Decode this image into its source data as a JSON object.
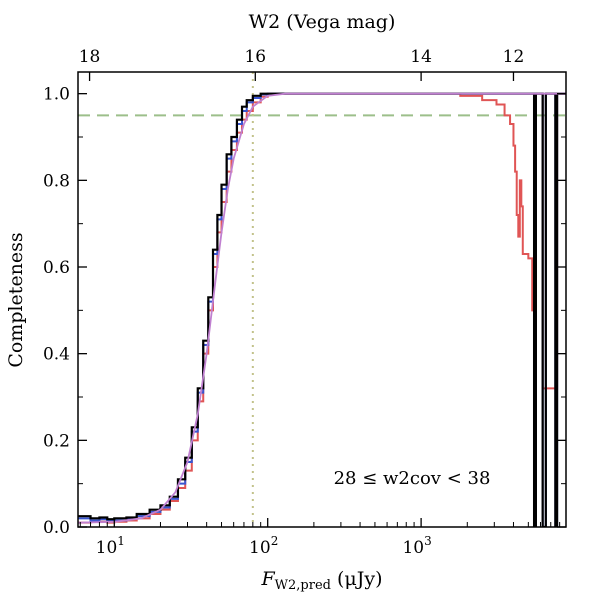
{
  "chart_data": {
    "type": "line",
    "xscale": "log",
    "xlim": [
      5.8,
      8800
    ],
    "ylim": [
      0.0,
      1.05
    ],
    "grid": false,
    "xlabel_main": "F",
    "xlabel_sub": "W2,pred",
    "xlabel_unit": " (μJy)",
    "ylabel": "Completeness",
    "top_xlabel": "W2 (Vega mag)",
    "annotation": "28 ≤ w2cov < 38",
    "bottom_ticks": [
      {
        "value": 10,
        "label": "10",
        "exp": "1"
      },
      {
        "value": 100,
        "label": "10",
        "exp": "2"
      },
      {
        "value": 1000,
        "label": "10",
        "exp": "3"
      }
    ],
    "y_ticks": [
      {
        "value": 0.0,
        "label": "0.0"
      },
      {
        "value": 0.2,
        "label": "0.2"
      },
      {
        "value": 0.4,
        "label": "0.4"
      },
      {
        "value": 0.6,
        "label": "0.6"
      },
      {
        "value": 0.8,
        "label": "0.8"
      },
      {
        "value": 1.0,
        "label": "1.0"
      }
    ],
    "top_ticks": [
      {
        "flux": 6.9,
        "label": "18"
      },
      {
        "flux": 83,
        "label": "16"
      },
      {
        "flux": 1000,
        "label": "14"
      },
      {
        "flux": 4000,
        "label": "12"
      }
    ],
    "reference_lines": [
      {
        "orientation": "horizontal",
        "value": 0.95,
        "color": "#9cbf8a",
        "style": "dashed"
      },
      {
        "orientation": "vertical",
        "value": 80,
        "color": "#c2c28a",
        "style": "dotted"
      }
    ],
    "series": [
      {
        "color": "#e05555",
        "style": "step",
        "points": [
          [
            5.8,
            0.01
          ],
          [
            7,
            0.012
          ],
          [
            9,
            0.01
          ],
          [
            10,
            0.012
          ],
          [
            12,
            0.015
          ],
          [
            14,
            0.02
          ],
          [
            17,
            0.03
          ],
          [
            20,
            0.04
          ],
          [
            23,
            0.06
          ],
          [
            26,
            0.09
          ],
          [
            29,
            0.13
          ],
          [
            32,
            0.2
          ],
          [
            35,
            0.29
          ],
          [
            38,
            0.4
          ],
          [
            41,
            0.5
          ],
          [
            44,
            0.6
          ],
          [
            47,
            0.68
          ],
          [
            50,
            0.75
          ],
          [
            54,
            0.82
          ],
          [
            58,
            0.87
          ],
          [
            63,
            0.91
          ],
          [
            68,
            0.94
          ],
          [
            73,
            0.96
          ],
          [
            80,
            0.98
          ],
          [
            90,
            0.993
          ],
          [
            100,
            1.0
          ],
          [
            1200,
            1.0
          ],
          [
            1800,
            0.995
          ],
          [
            2500,
            0.985
          ],
          [
            3100,
            0.975
          ],
          [
            3500,
            0.95
          ],
          [
            3800,
            0.93
          ],
          [
            4000,
            0.88
          ],
          [
            4100,
            0.82
          ],
          [
            4200,
            0.72
          ],
          [
            4300,
            0.67
          ],
          [
            4400,
            0.8
          ],
          [
            4500,
            0.74
          ],
          [
            4600,
            0.63
          ],
          [
            5000,
            0.62
          ],
          [
            5300,
            0.5
          ],
          [
            5450,
            0.0
          ],
          [
            5600,
            1.0
          ],
          [
            6000,
            1.0
          ],
          [
            6200,
            0.32
          ],
          [
            6500,
            0.32
          ],
          [
            7400,
            0.32
          ],
          [
            7700,
            1.0
          ],
          [
            8800,
            1.0
          ]
        ]
      },
      {
        "color": "#3a55d0",
        "style": "step",
        "points": [
          [
            5.8,
            0.02
          ],
          [
            7,
            0.015
          ],
          [
            8,
            0.018
          ],
          [
            9,
            0.015
          ],
          [
            10,
            0.015
          ],
          [
            12,
            0.02
          ],
          [
            14,
            0.025
          ],
          [
            17,
            0.035
          ],
          [
            20,
            0.045
          ],
          [
            23,
            0.065
          ],
          [
            26,
            0.1
          ],
          [
            29,
            0.15
          ],
          [
            32,
            0.22
          ],
          [
            35,
            0.31
          ],
          [
            38,
            0.42
          ],
          [
            41,
            0.52
          ],
          [
            44,
            0.63
          ],
          [
            47,
            0.71
          ],
          [
            50,
            0.78
          ],
          [
            54,
            0.85
          ],
          [
            58,
            0.89
          ],
          [
            63,
            0.93
          ],
          [
            68,
            0.96
          ],
          [
            73,
            0.98
          ],
          [
            80,
            0.99
          ],
          [
            90,
            0.998
          ],
          [
            100,
            1.0
          ],
          [
            5400,
            1.0
          ],
          [
            5450,
            0.0
          ],
          [
            5600,
            1.0
          ],
          [
            6000,
            1.0
          ],
          [
            6200,
            0.0
          ],
          [
            6500,
            1.0
          ],
          [
            7400,
            1.0
          ],
          [
            7500,
            0.0
          ],
          [
            7700,
            1.0
          ],
          [
            8800,
            1.0
          ]
        ]
      },
      {
        "color": "#000000",
        "style": "step",
        "points": [
          [
            5.8,
            0.025
          ],
          [
            7,
            0.02
          ],
          [
            8,
            0.022
          ],
          [
            9,
            0.018
          ],
          [
            10,
            0.02
          ],
          [
            12,
            0.022
          ],
          [
            14,
            0.03
          ],
          [
            17,
            0.04
          ],
          [
            20,
            0.05
          ],
          [
            23,
            0.07
          ],
          [
            26,
            0.11
          ],
          [
            29,
            0.16
          ],
          [
            32,
            0.23
          ],
          [
            35,
            0.32
          ],
          [
            38,
            0.43
          ],
          [
            41,
            0.53
          ],
          [
            44,
            0.64
          ],
          [
            47,
            0.72
          ],
          [
            50,
            0.79
          ],
          [
            54,
            0.86
          ],
          [
            58,
            0.9
          ],
          [
            63,
            0.94
          ],
          [
            68,
            0.97
          ],
          [
            73,
            0.985
          ],
          [
            80,
            0.995
          ],
          [
            90,
            1.0
          ],
          [
            5400,
            1.0
          ],
          [
            5450,
            0.0
          ],
          [
            5600,
            1.0
          ],
          [
            6000,
            1.0
          ],
          [
            6200,
            0.0
          ],
          [
            6500,
            1.0
          ],
          [
            7400,
            1.0
          ],
          [
            7500,
            0.0
          ],
          [
            7700,
            1.0
          ],
          [
            8800,
            1.0
          ]
        ]
      },
      {
        "color": "#c080d0",
        "style": "smooth",
        "points": [
          [
            5.8,
            0.01
          ],
          [
            10,
            0.012
          ],
          [
            15,
            0.02
          ],
          [
            20,
            0.04
          ],
          [
            25,
            0.08
          ],
          [
            30,
            0.15
          ],
          [
            35,
            0.26
          ],
          [
            40,
            0.4
          ],
          [
            45,
            0.55
          ],
          [
            50,
            0.68
          ],
          [
            55,
            0.78
          ],
          [
            60,
            0.85
          ],
          [
            70,
            0.93
          ],
          [
            80,
            0.97
          ],
          [
            100,
            0.995
          ],
          [
            130,
            1.0
          ],
          [
            8800,
            1.0
          ]
        ]
      }
    ]
  }
}
